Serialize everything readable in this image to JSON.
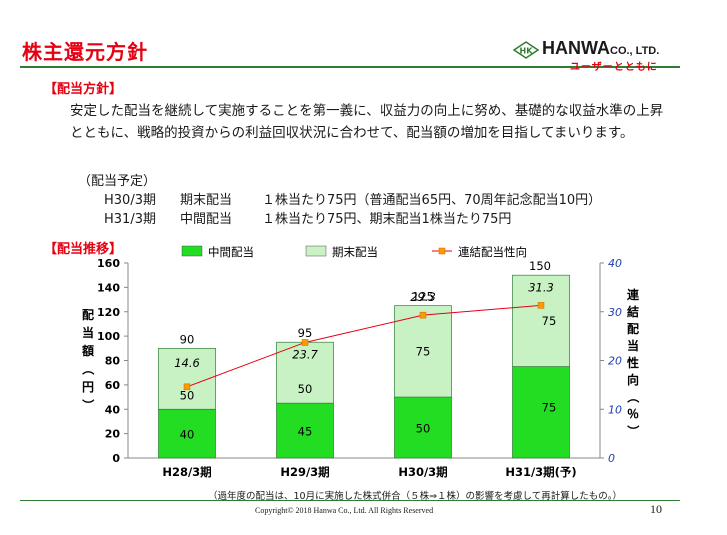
{
  "title": "株主還元方針",
  "logo": {
    "mark": "HK",
    "name": "HANWA",
    "suffix": "CO., LTD.",
    "tagline": "ユーザーとともに"
  },
  "sections": {
    "policy_heading": "【配当方針】",
    "history_heading": "【配当推移】"
  },
  "policy_text": "安定した配当を継続して実施することを第一義に、収益力の向上に努め、基礎的な収益水準の上昇とともに、戦略的投資からの利益回収状況に合わせて、配当額の増加を目指してまいります。",
  "schedule": {
    "heading": "（配当予定）",
    "rows": [
      {
        "period": "H30/3期",
        "type": "期末配当",
        "detail": "１株当たり75円（普通配当65円、70周年記念配当10円）"
      },
      {
        "period": "H31/3期",
        "type": "中間配当",
        "detail": "１株当たり75円、期末配当1株当たり75円"
      }
    ]
  },
  "chart_data": {
    "type": "bar",
    "stacked": true,
    "categories": [
      "H28/3期",
      "H29/3期",
      "H30/3期",
      "H31/3期(予)"
    ],
    "series": [
      {
        "name": "中間配当",
        "values": [
          40,
          45,
          50,
          75
        ],
        "color": "#22dd22"
      },
      {
        "name": "期末配当",
        "values": [
          50,
          50,
          75,
          75
        ],
        "color": "#c9f2c4"
      }
    ],
    "totals": [
      90,
      95,
      125,
      150
    ],
    "line_series": {
      "name": "連結配当性向",
      "values": [
        14.6,
        23.7,
        29.3,
        31.3
      ],
      "color": "#e60012",
      "marker_color": "#ff9900",
      "axis": "right"
    },
    "ylabel_left": "配当額（円）",
    "ylabel_right": "連結配当性向（％）",
    "ylim_left": [
      0,
      160
    ],
    "yticks_left": [
      0,
      20,
      40,
      60,
      80,
      100,
      120,
      140,
      160
    ],
    "ylim_right": [
      0,
      40
    ],
    "yticks_right": [
      0,
      10,
      20,
      30,
      40
    ],
    "grid": false,
    "legend_position": "top"
  },
  "footnote": "（過年度の配当は、10月に実施した株式併合（５株⇒１株）の影響を考慮して再計算したもの。）",
  "copyright": "Copyright© 2018 Hanwa Co., Ltd.  All Rights Reserved",
  "page_number": "10"
}
